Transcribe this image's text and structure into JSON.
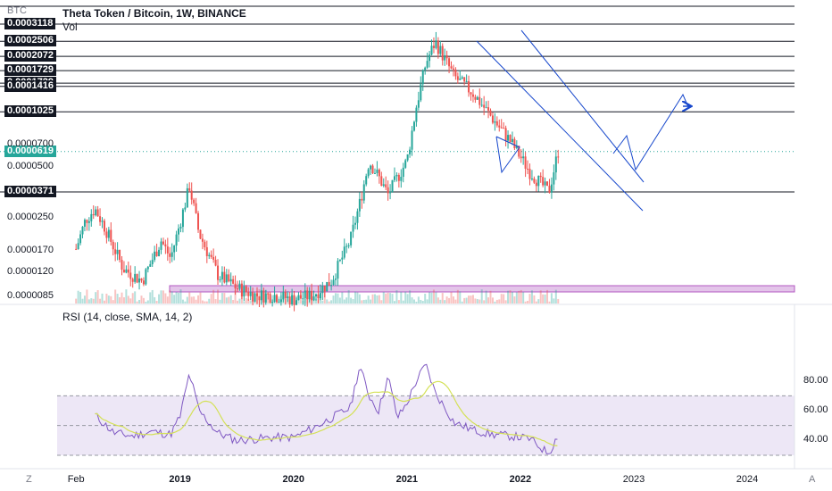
{
  "header": {
    "currency": "BTC",
    "title": "Theta Token / Bitcoin, 1W, BINANCE",
    "vol_label": "Vol"
  },
  "level_tags": [
    "0.0003118",
    "0.0002506",
    "0.0002072",
    "0.0001729",
    "0.0001729",
    "0.0001416",
    "0.0001025",
    "0.0000371"
  ],
  "current_price_tag": "0.0000619",
  "y_axis_labels": [
    "0.0000700",
    "0.0000500",
    "0.0000250",
    "0.0000170",
    "0.0000120",
    "0.0000085"
  ],
  "x_axis_labels": [
    {
      "label": "Feb",
      "bold": false
    },
    {
      "label": "2019",
      "bold": true
    },
    {
      "label": "2020",
      "bold": true
    },
    {
      "label": "2021",
      "bold": true
    },
    {
      "label": "2022",
      "bold": true
    },
    {
      "label": "2023",
      "bold": false
    },
    {
      "label": "2024",
      "bold": false
    }
  ],
  "rsi": {
    "title": "RSI (14, close, SMA, 14, 2)",
    "levels": {
      "upper": 70,
      "middle": 50,
      "lower": 30
    },
    "axis_labels": [
      "80.00",
      "60.00",
      "40.00"
    ]
  },
  "corner_left": "Z",
  "corner_right": "A",
  "colors": {
    "up": "#26a69a",
    "down": "#ef5350",
    "rsi_line": "#7e57c2",
    "rsi_ma": "#d4e157",
    "drawing": "#1848cc",
    "zone_fill": "#e1bee7",
    "zone_border": "#ab47bc",
    "rsi_band": "#ede7f6"
  },
  "chart_data": {
    "type": "candlestick",
    "pair": "THETA/BTC",
    "interval": "1W",
    "horizontal_levels": [
      0.0003118,
      0.0002506,
      0.0002072,
      0.0001729,
      0.0001729,
      0.0001416,
      0.0001025,
      3.71e-05
    ],
    "current_price": 6.19e-05,
    "close_path": [
      {
        "date": "2018-02",
        "close": 1.8e-05
      },
      {
        "date": "2018-03",
        "close": 2.6e-05
      },
      {
        "date": "2018-04",
        "close": 3e-05
      },
      {
        "date": "2018-05",
        "close": 2.4e-05
      },
      {
        "date": "2018-07",
        "close": 1.4e-05
      },
      {
        "date": "2018-09",
        "close": 1.2e-05
      },
      {
        "date": "2018-11",
        "close": 2e-05
      },
      {
        "date": "2018-12",
        "close": 1.6e-05
      },
      {
        "date": "2019-01",
        "close": 2.5e-05
      },
      {
        "date": "2019-02",
        "close": 4e-05
      },
      {
        "date": "2019-03",
        "close": 2.2e-05
      },
      {
        "date": "2019-05",
        "close": 1.3e-05
      },
      {
        "date": "2019-07",
        "close": 1.1e-05
      },
      {
        "date": "2019-09",
        "close": 1e-05
      },
      {
        "date": "2019-11",
        "close": 1e-05
      },
      {
        "date": "2020-01",
        "close": 9.5e-06
      },
      {
        "date": "2020-03",
        "close": 1e-05
      },
      {
        "date": "2020-05",
        "close": 1.2e-05
      },
      {
        "date": "2020-07",
        "close": 2e-05
      },
      {
        "date": "2020-08",
        "close": 3.2e-05
      },
      {
        "date": "2020-09",
        "close": 5.5e-05
      },
      {
        "date": "2020-10",
        "close": 4.5e-05
      },
      {
        "date": "2020-11",
        "close": 3.6e-05
      },
      {
        "date": "2021-01",
        "close": 5.5e-05
      },
      {
        "date": "2021-02",
        "close": 0.00011
      },
      {
        "date": "2021-03",
        "close": 0.00019
      },
      {
        "date": "2021-04",
        "close": 0.00025
      },
      {
        "date": "2021-05",
        "close": 0.0002
      },
      {
        "date": "2021-06",
        "close": 0.00016
      },
      {
        "date": "2021-08",
        "close": 0.00013
      },
      {
        "date": "2021-10",
        "close": 9.5e-05
      },
      {
        "date": "2021-12",
        "close": 7e-05
      },
      {
        "date": "2022-02",
        "close": 4.8e-05
      },
      {
        "date": "2022-04",
        "close": 3.7e-05
      },
      {
        "date": "2022-05",
        "close": 6.2e-05
      }
    ],
    "rsi_path": [
      {
        "date": "2018-04",
        "rsi": 57
      },
      {
        "date": "2018-06",
        "rsi": 45
      },
      {
        "date": "2018-08",
        "rsi": 43
      },
      {
        "date": "2018-10",
        "rsi": 46
      },
      {
        "date": "2018-12",
        "rsi": 44
      },
      {
        "date": "2019-01",
        "rsi": 56
      },
      {
        "date": "2019-02",
        "rsi": 85
      },
      {
        "date": "2019-03",
        "rsi": 60
      },
      {
        "date": "2019-05",
        "rsi": 45
      },
      {
        "date": "2019-07",
        "rsi": 40
      },
      {
        "date": "2019-09",
        "rsi": 41
      },
      {
        "date": "2019-11",
        "rsi": 42
      },
      {
        "date": "2020-01",
        "rsi": 42
      },
      {
        "date": "2020-03",
        "rsi": 48
      },
      {
        "date": "2020-05",
        "rsi": 55
      },
      {
        "date": "2020-07",
        "rsi": 62
      },
      {
        "date": "2020-08",
        "rsi": 90
      },
      {
        "date": "2020-09",
        "rsi": 70
      },
      {
        "date": "2020-10",
        "rsi": 60
      },
      {
        "date": "2020-11",
        "rsi": 83
      },
      {
        "date": "2020-12",
        "rsi": 55
      },
      {
        "date": "2021-01",
        "rsi": 65
      },
      {
        "date": "2021-02",
        "rsi": 80
      },
      {
        "date": "2021-03",
        "rsi": 91
      },
      {
        "date": "2021-04",
        "rsi": 72
      },
      {
        "date": "2021-05",
        "rsi": 62
      },
      {
        "date": "2021-06",
        "rsi": 52
      },
      {
        "date": "2021-08",
        "rsi": 47
      },
      {
        "date": "2021-10",
        "rsi": 44
      },
      {
        "date": "2021-12",
        "rsi": 43
      },
      {
        "date": "2022-02",
        "rsi": 41
      },
      {
        "date": "2022-04",
        "rsi": 31
      },
      {
        "date": "2022-05",
        "rsi": 44
      }
    ],
    "rsi_range": [
      30,
      90
    ],
    "x_range": [
      "2017-12",
      "2024-06"
    ]
  }
}
